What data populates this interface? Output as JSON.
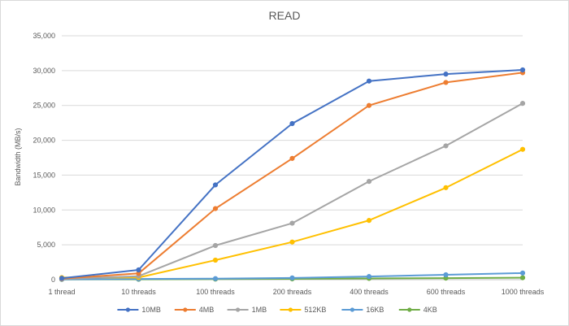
{
  "chart_data": {
    "type": "line",
    "title": "READ",
    "xlabel": "",
    "ylabel": "Bandwidth (MB/s)",
    "categories": [
      "1 thread",
      "10 threads",
      "100 threads",
      "200 threads",
      "400 threads",
      "600 threads",
      "1000 threads"
    ],
    "ylim": [
      0,
      35000
    ],
    "yticks": [
      "0",
      "5,000",
      "10,000",
      "15,000",
      "20,000",
      "25,000",
      "30,000",
      "35,000"
    ],
    "grid": true,
    "legend": "bottom",
    "series": [
      {
        "name": "10MB",
        "color": "#4472C4",
        "values": [
          200,
          1400,
          13600,
          22400,
          28500,
          29500,
          30100
        ]
      },
      {
        "name": "4MB",
        "color": "#ED7D31",
        "values": [
          150,
          900,
          10200,
          17400,
          25000,
          28300,
          29700
        ]
      },
      {
        "name": "1MB",
        "color": "#A5A5A5",
        "values": [
          100,
          500,
          4900,
          8100,
          14100,
          19200,
          25300
        ]
      },
      {
        "name": "512KB",
        "color": "#FFC000",
        "values": [
          300,
          300,
          2800,
          5400,
          8500,
          13200,
          18700
        ]
      },
      {
        "name": "16KB",
        "color": "#5B9BD5",
        "values": [
          50,
          100,
          150,
          250,
          450,
          700,
          950
        ]
      },
      {
        "name": "4KB",
        "color": "#70AD47",
        "values": [
          30,
          50,
          80,
          120,
          180,
          220,
          280
        ]
      }
    ]
  }
}
